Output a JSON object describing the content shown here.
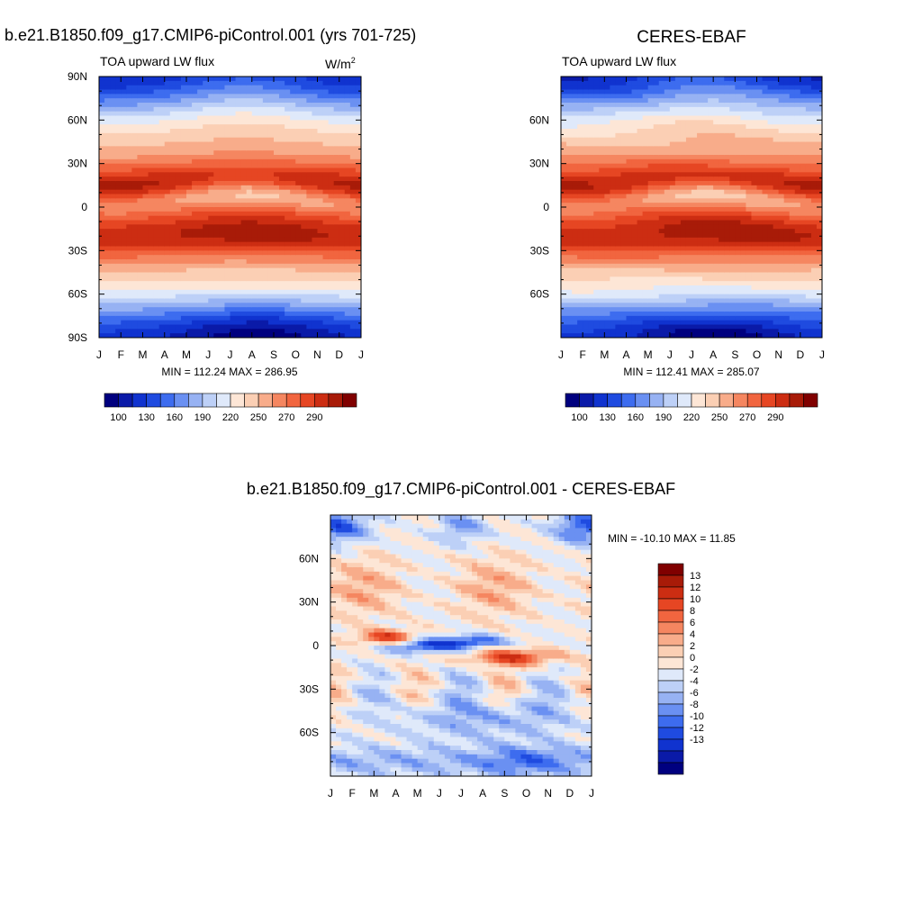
{
  "palette": {
    "blues": [
      "#00007f",
      "#0a1aa8",
      "#1033cf",
      "#1f4be0",
      "#3d6cef",
      "#6a90f2",
      "#97b2f3",
      "#bdd0f7",
      "#dfe9fa"
    ],
    "reds": [
      "#fde6d6",
      "#fbcfb4",
      "#f8ac8a",
      "#f58660",
      "#f1653f",
      "#e64623",
      "#cc2d12",
      "#a81b08",
      "#800000"
    ],
    "diff_levels": [
      "#00007f",
      "#0a1aa8",
      "#1033cf",
      "#1f4be0",
      "#3d6cef",
      "#6a90f2",
      "#97b2f3",
      "#bdd0f7",
      "#dfe9fa",
      "#fde6d6",
      "#fbcfb4",
      "#f8ac8a",
      "#f58660",
      "#f1653f",
      "#e64623",
      "#cc2d12",
      "#a81b08",
      "#800000"
    ]
  },
  "months": [
    "J",
    "F",
    "M",
    "A",
    "M",
    "J",
    "J",
    "A",
    "S",
    "O",
    "N",
    "D",
    "J"
  ],
  "chart_data": [
    {
      "type": "heatmap",
      "title": "b.e21.B1850.f09_g17.CMIP6-piControl.001 (yrs 701-725)",
      "subtitle": "TOA upward LW flux",
      "units": "W/m",
      "units_sup": "2",
      "xlabel": "",
      "ylabel": "",
      "x_ticks": [
        "J",
        "F",
        "M",
        "A",
        "M",
        "J",
        "J",
        "A",
        "S",
        "O",
        "N",
        "D",
        "J"
      ],
      "y_ticks": [
        "90N",
        "60N",
        "30N",
        "0",
        "30S",
        "60S",
        "90S"
      ],
      "ylim": [
        -90,
        90
      ],
      "stats": "MIN = 112.24 MAX = 286.95",
      "colorbar_ticks": [
        "100",
        "130",
        "160",
        "190",
        "220",
        "250",
        "270",
        "290"
      ],
      "zlim": [
        112.24,
        286.95
      ],
      "grid": false
    },
    {
      "type": "heatmap",
      "title": "CERES-EBAF",
      "subtitle": "TOA upward LW flux",
      "xlabel": "",
      "ylabel": "",
      "x_ticks": [
        "J",
        "F",
        "M",
        "A",
        "M",
        "J",
        "J",
        "A",
        "S",
        "O",
        "N",
        "D",
        "J"
      ],
      "y_ticks": [
        "",
        "60N",
        "30N",
        "0",
        "30S",
        "60S",
        ""
      ],
      "ylim": [
        -90,
        90
      ],
      "stats": "MIN = 112.41 MAX = 285.07",
      "colorbar_ticks": [
        "100",
        "130",
        "160",
        "190",
        "220",
        "250",
        "270",
        "290"
      ],
      "zlim": [
        112.41,
        285.07
      ],
      "grid": false
    },
    {
      "type": "heatmap",
      "title": "b.e21.B1850.f09_g17.CMIP6-piControl.001 - CERES-EBAF",
      "xlabel": "",
      "ylabel": "",
      "x_ticks": [
        "J",
        "F",
        "M",
        "A",
        "M",
        "J",
        "J",
        "A",
        "S",
        "O",
        "N",
        "D",
        "J"
      ],
      "y_ticks": [
        "",
        "60N",
        "30N",
        "0",
        "30S",
        "60S",
        ""
      ],
      "ylim": [
        -90,
        90
      ],
      "stats": "MIN = -10.10 MAX =  11.85",
      "colorbar_ticks": [
        "13",
        "12",
        "10",
        "8",
        "6",
        "4",
        "2",
        "0",
        "-2",
        "-4",
        "-6",
        "-8",
        "-10",
        "-12",
        "-13"
      ],
      "zlim": [
        -10.1,
        11.85
      ],
      "grid": false
    }
  ]
}
